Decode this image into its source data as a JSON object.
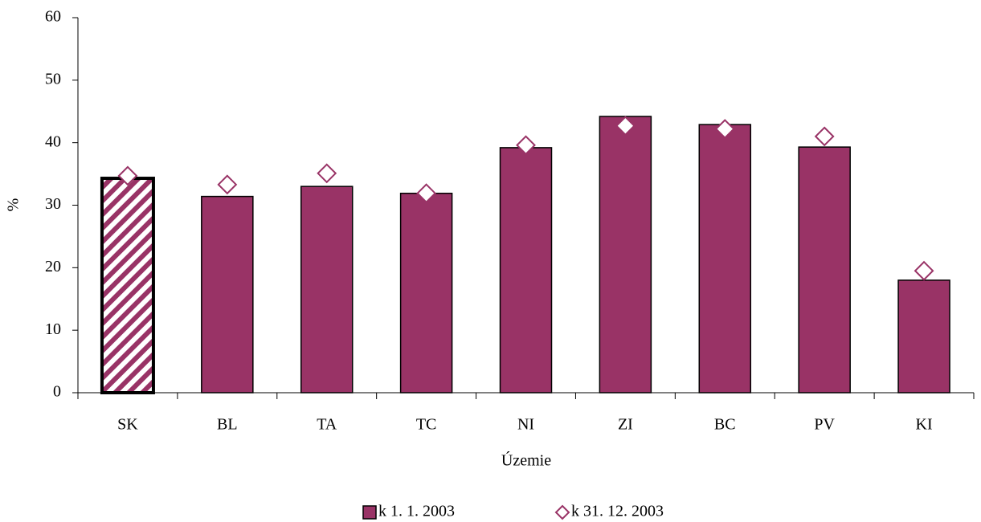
{
  "chart_data": {
    "type": "bar",
    "categories": [
      "SK",
      "BL",
      "TA",
      "TC",
      "NI",
      "ZI",
      "BC",
      "PV",
      "KI"
    ],
    "x_label": "Územie",
    "y_label": "%",
    "series": [
      {
        "name": "k 1. 1. 2003",
        "type": "bar",
        "color": "#993366",
        "values": [
          34.3,
          31.4,
          33.0,
          31.9,
          39.2,
          44.2,
          42.9,
          39.3,
          18.0
        ]
      },
      {
        "name": "k 31. 12. 2003",
        "type": "scatter",
        "marker": "diamond",
        "color": "#993366",
        "values": [
          34.7,
          33.3,
          35.1,
          31.9,
          39.6,
          42.7,
          42.2,
          41.0,
          19.5
        ]
      }
    ],
    "hatched_categories": [
      0
    ],
    "ylim": [
      0,
      60
    ],
    "yticks": [
      0,
      10,
      20,
      30,
      40,
      50,
      60
    ],
    "grid": false,
    "legend": "bottom"
  }
}
